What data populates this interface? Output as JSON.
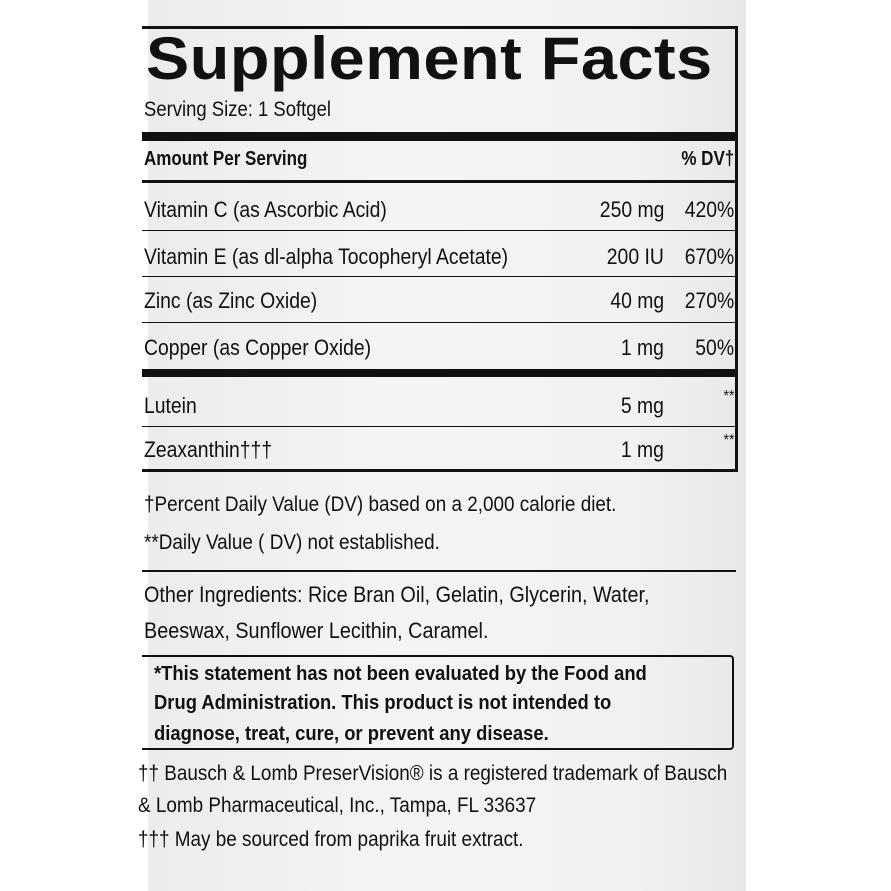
{
  "title": "Supplement Facts",
  "serving_size": "Serving Size: 1 Softgel",
  "header": {
    "amount": "Amount Per Serving",
    "dv": "% DV†"
  },
  "nutrients": [
    {
      "name": "Vitamin C (as Ascorbic Acid)",
      "amount": "250 mg",
      "dv": "420%"
    },
    {
      "name": "Vitamin E (as dl-alpha Tocopheryl Acetate)",
      "amount": "200 IU",
      "dv": "670%"
    },
    {
      "name": "Zinc (as Zinc Oxide)",
      "amount": "40 mg",
      "dv": "270%"
    },
    {
      "name": "Copper (as Copper Oxide)",
      "amount": "1 mg",
      "dv": "50%"
    }
  ],
  "other_nutrients": [
    {
      "name": "Lutein",
      "amount": "5 mg",
      "dv": "**"
    },
    {
      "name": "Zeaxanthin†††",
      "amount": "1 mg",
      "dv": "**"
    }
  ],
  "footnotes": [
    "†Percent Daily Value (DV) based on a 2,000 calorie diet.",
    "**Daily Value ( DV) not established."
  ],
  "other_ingredients": [
    "Other Ingredients: Rice Bran Oil, Gelatin, Glycerin, Water,",
    "Beeswax, Sunflower Lecithin, Caramel."
  ],
  "disclaimer": [
    "*This statement has not been evaluated by the Food and",
    "Drug Administration. This product is not intended to",
    "diagnose, treat, cure, or prevent any disease."
  ],
  "trademark": [
    "†† Bausch & Lomb PreserVision® is a registered trademark of Bausch",
    "& Lomb Pharmaceutical, Inc., Tampa, FL 33637",
    "††† May be sourced from paprika fruit extract."
  ]
}
